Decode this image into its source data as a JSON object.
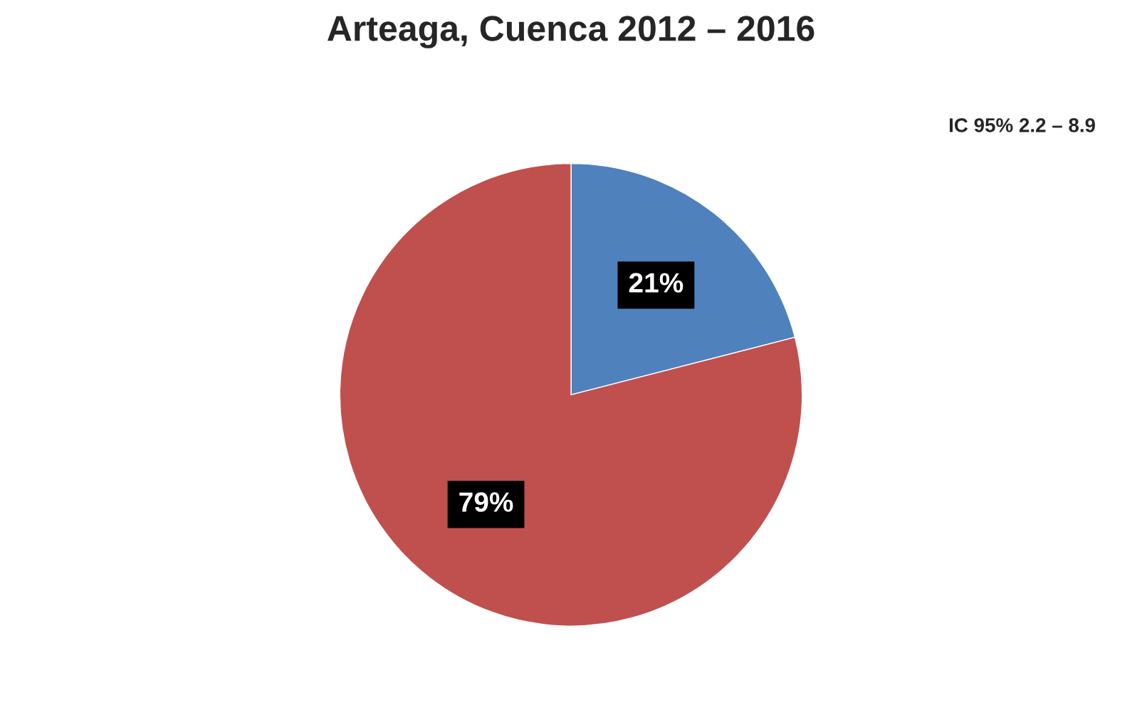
{
  "chart_data": {
    "type": "pie",
    "title": "Arteaga, Cuenca 2012 – 2016",
    "categories": [
      null,
      null
    ],
    "values": [
      21,
      79
    ],
    "colors": [
      "#4f81bd",
      "#c0504d"
    ],
    "value_labels": [
      "21%",
      "79%"
    ],
    "annotations": [
      "IC 95% 2.2 – 8.9"
    ]
  }
}
